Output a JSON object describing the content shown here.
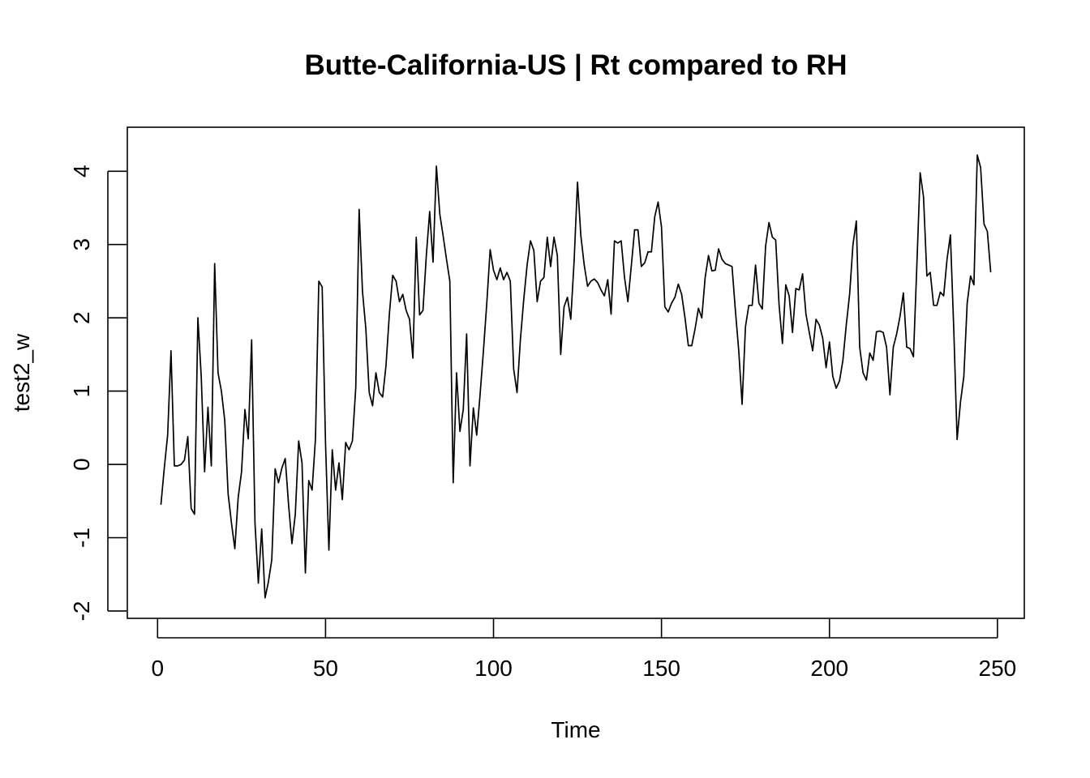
{
  "chart_data": {
    "type": "line",
    "title": "Butte-California-US | Rt compared to RH",
    "xlabel": "Time",
    "ylabel": "test2_w",
    "xlim": [
      -9,
      258
    ],
    "ylim": [
      -2.1,
      4.6
    ],
    "xticks": [
      0,
      50,
      100,
      150,
      200,
      250
    ],
    "yticks": [
      -2,
      -1,
      0,
      1,
      2,
      3,
      4
    ],
    "grid": false,
    "legend": "none",
    "line_color": "#000000",
    "series": [
      {
        "x": [
          1,
          2,
          3,
          4,
          5,
          6,
          7,
          8,
          9,
          10,
          11,
          12,
          13,
          14,
          15,
          16,
          17,
          18,
          19,
          20,
          21,
          22,
          23,
          24,
          25,
          26,
          27,
          28,
          29,
          30,
          31,
          32,
          33,
          34,
          35,
          36,
          37,
          38,
          39,
          40,
          41,
          42,
          43,
          44,
          45,
          46,
          47,
          48,
          49,
          50,
          51,
          52,
          53,
          54,
          55,
          56,
          57,
          58,
          59,
          60,
          61,
          62,
          63,
          64,
          65,
          66,
          67,
          68,
          69,
          70,
          71,
          72,
          73,
          74,
          75,
          76,
          77,
          78,
          79,
          80,
          81,
          82,
          83,
          84,
          85,
          86,
          87,
          88,
          89,
          90,
          91,
          92,
          93,
          94,
          95,
          96,
          97,
          98,
          99,
          100,
          101,
          102,
          103,
          104,
          105,
          106,
          107,
          108,
          109,
          110,
          111,
          112,
          113,
          114,
          115,
          116,
          117,
          118,
          119,
          120,
          121,
          122,
          123,
          124,
          125,
          126,
          127,
          128,
          129,
          130,
          131,
          132,
          133,
          134,
          135,
          136,
          137,
          138,
          139,
          140,
          141,
          142,
          143,
          144,
          145,
          146,
          147,
          148,
          149,
          150,
          151,
          152,
          153,
          154,
          155,
          156,
          157,
          158,
          159,
          160,
          161,
          162,
          163,
          164,
          165,
          166,
          167,
          168,
          169,
          170,
          171,
          172,
          173,
          174,
          175,
          176,
          177,
          178,
          179,
          180,
          181,
          182,
          183,
          184,
          185,
          186,
          187,
          188,
          189,
          190,
          191,
          192,
          193,
          194,
          195,
          196,
          197,
          198,
          199,
          200,
          201,
          202,
          203,
          204,
          205,
          206,
          207,
          208,
          209,
          210,
          211,
          212,
          213,
          214,
          215,
          216,
          217,
          218,
          219,
          220,
          221,
          222,
          223,
          224,
          225,
          226,
          227,
          228,
          229,
          230,
          231,
          232,
          233,
          234,
          235,
          236,
          237,
          238,
          239,
          240,
          241,
          242,
          243,
          244,
          245,
          246,
          247,
          248
        ],
        "values": [
          -0.55,
          -0.05,
          0.4,
          1.55,
          -0.02,
          -0.02,
          0.0,
          0.06,
          0.38,
          -0.6,
          -0.68,
          2.0,
          1.2,
          -0.1,
          0.78,
          -0.02,
          2.74,
          1.25,
          1.0,
          0.6,
          -0.4,
          -0.8,
          -1.15,
          -0.45,
          -0.1,
          0.75,
          0.35,
          1.7,
          -0.8,
          -1.62,
          -0.88,
          -1.82,
          -1.6,
          -1.3,
          -0.06,
          -0.25,
          -0.05,
          0.08,
          -0.55,
          -1.08,
          -0.68,
          0.32,
          0.02,
          -1.48,
          -0.22,
          -0.35,
          0.35,
          2.5,
          2.42,
          0.28,
          -1.17,
          0.2,
          -0.35,
          0.02,
          -0.48,
          0.3,
          0.2,
          0.32,
          1.05,
          3.48,
          2.36,
          1.85,
          0.98,
          0.8,
          1.25,
          0.98,
          0.92,
          1.35,
          2.05,
          2.58,
          2.5,
          2.22,
          2.32,
          2.1,
          1.98,
          1.45,
          3.1,
          2.04,
          2.1,
          2.85,
          3.45,
          2.76,
          4.07,
          3.42,
          3.12,
          2.8,
          2.5,
          -0.25,
          1.25,
          0.45,
          0.75,
          1.78,
          -0.02,
          0.77,
          0.4,
          0.95,
          1.55,
          2.2,
          2.93,
          2.65,
          2.52,
          2.68,
          2.52,
          2.62,
          2.5,
          1.3,
          0.98,
          1.7,
          2.25,
          2.72,
          3.05,
          2.92,
          2.22,
          2.5,
          2.55,
          3.1,
          2.7,
          3.1,
          2.85,
          1.5,
          2.15,
          2.28,
          1.98,
          2.78,
          3.85,
          3.12,
          2.72,
          2.43,
          2.5,
          2.53,
          2.48,
          2.38,
          2.3,
          2.52,
          2.05,
          3.05,
          3.02,
          3.05,
          2.55,
          2.22,
          2.7,
          3.2,
          3.2,
          2.7,
          2.75,
          2.9,
          2.9,
          3.38,
          3.58,
          3.24,
          2.15,
          2.08,
          2.2,
          2.28,
          2.46,
          2.32,
          2.0,
          1.62,
          1.62,
          1.85,
          2.13,
          2.0,
          2.55,
          2.85,
          2.64,
          2.65,
          2.94,
          2.8,
          2.74,
          2.72,
          2.7,
          2.1,
          1.55,
          0.82,
          1.88,
          2.17,
          2.17,
          2.72,
          2.2,
          2.12,
          2.98,
          3.3,
          3.1,
          3.06,
          2.18,
          1.65,
          2.45,
          2.3,
          1.8,
          2.4,
          2.38,
          2.6,
          2.05,
          1.8,
          1.55,
          1.98,
          1.9,
          1.72,
          1.32,
          1.67,
          1.2,
          1.04,
          1.14,
          1.42,
          1.9,
          2.32,
          3.0,
          3.32,
          1.6,
          1.25,
          1.15,
          1.52,
          1.42,
          1.81,
          1.82,
          1.8,
          1.6,
          0.95,
          1.6,
          1.78,
          2.02,
          2.34,
          1.6,
          1.58,
          1.47,
          2.7,
          3.98,
          3.65,
          2.57,
          2.62,
          2.17,
          2.17,
          2.35,
          2.3,
          2.8,
          3.13,
          1.85,
          0.34,
          0.85,
          1.2,
          2.2,
          2.57,
          2.45,
          4.22,
          4.05,
          3.28,
          3.18,
          2.62
        ]
      }
    ]
  }
}
